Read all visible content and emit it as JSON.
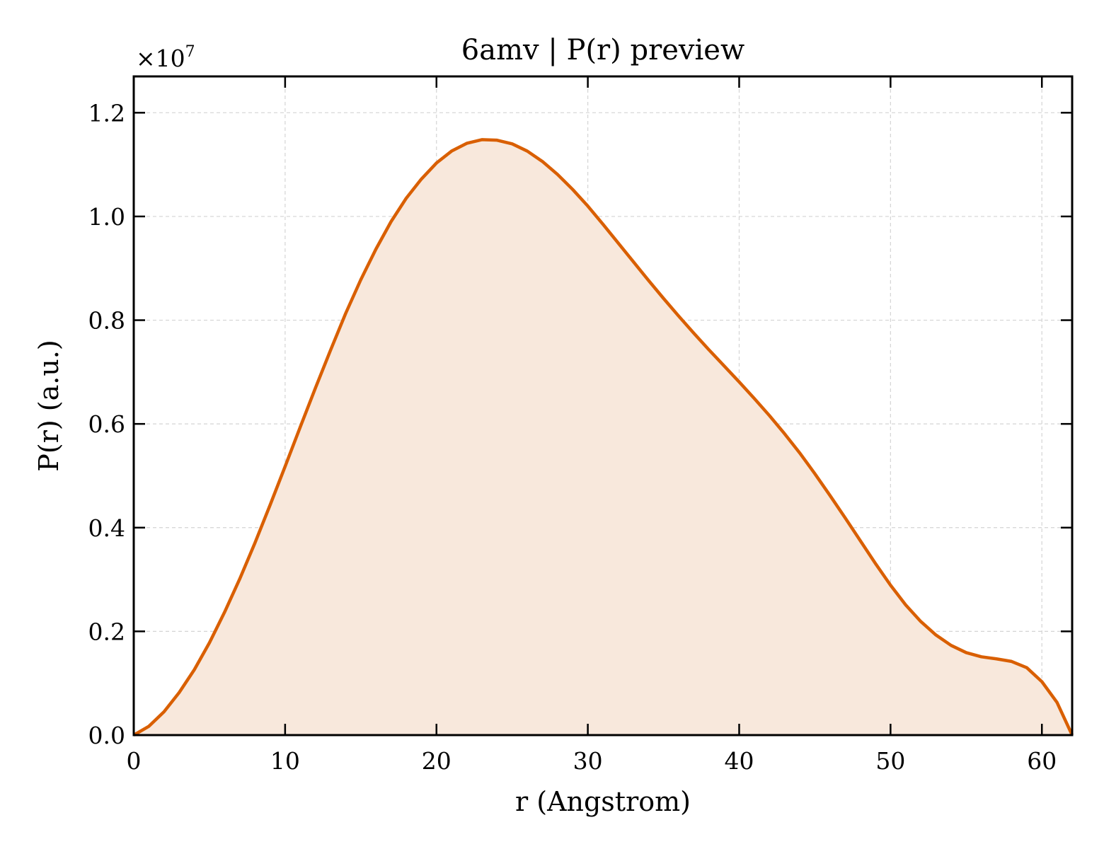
{
  "chart_data": {
    "type": "area",
    "title": "6amv | P(r) preview",
    "xlabel": "r (Angstrom)",
    "ylabel": "P(r) (a.u.)",
    "y_multiplier": "×10",
    "y_multiplier_exp": "7",
    "xlim": [
      0,
      62
    ],
    "ylim": [
      0,
      1.27
    ],
    "xticks": [
      0,
      10,
      20,
      30,
      40,
      50,
      60
    ],
    "xtick_labels": [
      "0",
      "10",
      "20",
      "30",
      "40",
      "50",
      "60"
    ],
    "yticks": [
      0.0,
      0.2,
      0.4,
      0.6,
      0.8,
      1.0,
      1.2
    ],
    "ytick_labels": [
      "0.0",
      "0.2",
      "0.4",
      "0.6",
      "0.8",
      "1.0",
      "1.2"
    ],
    "grid": true,
    "series": [
      {
        "color": "#d95f02",
        "fill_color": "#f8e8dc",
        "x": [
          0,
          1,
          2,
          3,
          4,
          5,
          6,
          7,
          8,
          9,
          10,
          11,
          12,
          13,
          14,
          15,
          16,
          17,
          18,
          19,
          20,
          21,
          22,
          23,
          24,
          25,
          26,
          27,
          28,
          29,
          30,
          31,
          32,
          33,
          34,
          35,
          36,
          37,
          38,
          39,
          40,
          41,
          42,
          43,
          44,
          45,
          46,
          47,
          48,
          49,
          50,
          51,
          52,
          53,
          54,
          55,
          56,
          57,
          58,
          59,
          60,
          61,
          62
        ],
        "y": [
          0.0,
          0.017,
          0.045,
          0.082,
          0.126,
          0.178,
          0.237,
          0.301,
          0.37,
          0.443,
          0.518,
          0.594,
          0.669,
          0.742,
          0.813,
          0.878,
          0.937,
          0.99,
          1.035,
          1.072,
          1.103,
          1.126,
          1.141,
          1.148,
          1.147,
          1.14,
          1.126,
          1.106,
          1.081,
          1.052,
          1.02,
          0.985,
          0.949,
          0.913,
          0.877,
          0.842,
          0.808,
          0.775,
          0.743,
          0.712,
          0.681,
          0.649,
          0.616,
          0.581,
          0.544,
          0.504,
          0.462,
          0.419,
          0.375,
          0.331,
          0.289,
          0.251,
          0.219,
          0.193,
          0.173,
          0.159,
          0.151,
          0.147,
          0.142,
          0.13,
          0.103,
          0.063,
          0.0
        ]
      }
    ]
  }
}
